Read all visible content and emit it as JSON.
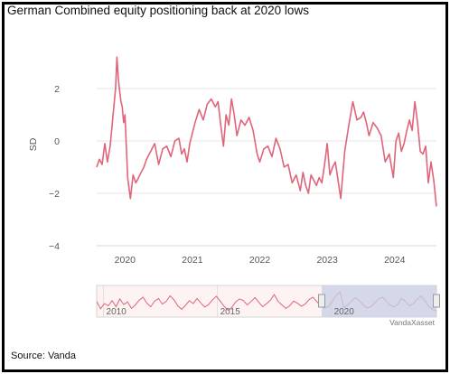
{
  "title": "German Combined equity positioning back at 2020 lows",
  "source": "Source: Vanda",
  "credit": "VandaXasset",
  "colors": {
    "line": "#e0647a",
    "grid": "#e6e6e6",
    "nav_fill": "#c7cfe6",
    "nav_handle": "#eeeeee"
  },
  "chart_data": {
    "type": "line",
    "title": "German Combined equity positioning back at 2020 lows",
    "xlabel": "",
    "ylabel": "SD",
    "ylim": [
      -4,
      4
    ],
    "yticks": [
      "2",
      "0",
      "−2",
      "−4"
    ],
    "ytick_values": [
      2,
      0,
      -2,
      -4
    ],
    "xticks": [
      "2020",
      "2021",
      "2022",
      "2023",
      "2024"
    ],
    "xtick_values": [
      2020,
      2021,
      2022,
      2023,
      2024
    ],
    "xlim": [
      2019.58,
      2024.62
    ],
    "grid": true,
    "series": [
      {
        "x": [
          2019.58,
          2019.62,
          2019.66,
          2019.7,
          2019.74,
          2019.78,
          2019.82,
          2019.86,
          2019.88,
          2019.9,
          2019.92,
          2019.94,
          2019.96,
          2019.98,
          2020.0,
          2020.04,
          2020.08,
          2020.12,
          2020.16,
          2020.2,
          2020.24,
          2020.28,
          2020.32,
          2020.38,
          2020.44,
          2020.5,
          2020.56,
          2020.62,
          2020.68,
          2020.74,
          2020.8,
          2020.84,
          2020.88,
          2020.92,
          2020.96,
          2021.0,
          2021.04,
          2021.1,
          2021.16,
          2021.22,
          2021.28,
          2021.34,
          2021.38,
          2021.42,
          2021.46,
          2021.5,
          2021.54,
          2021.58,
          2021.62,
          2021.66,
          2021.72,
          2021.78,
          2021.84,
          2021.9,
          2021.96,
          2022.0,
          2022.06,
          2022.12,
          2022.18,
          2022.24,
          2022.3,
          2022.36,
          2022.42,
          2022.48,
          2022.54,
          2022.6,
          2022.64,
          2022.68,
          2022.72,
          2022.76,
          2022.8,
          2022.84,
          2022.88,
          2022.92,
          2022.96,
          2023.0,
          2023.04,
          2023.08,
          2023.12,
          2023.16,
          2023.2,
          2023.26,
          2023.32,
          2023.38,
          2023.44,
          2023.5,
          2023.54,
          2023.58,
          2023.62,
          2023.68,
          2023.74,
          2023.8,
          2023.86,
          2023.92,
          2023.98,
          2024.02,
          2024.06,
          2024.1,
          2024.14,
          2024.18,
          2024.22,
          2024.26,
          2024.3,
          2024.34,
          2024.38,
          2024.42,
          2024.46,
          2024.5,
          2024.54,
          2024.58,
          2024.62
        ],
        "values": [
          -1.0,
          -0.7,
          -0.9,
          -0.1,
          -0.8,
          -0.2,
          0.9,
          2.0,
          3.2,
          2.4,
          1.9,
          1.5,
          1.3,
          0.7,
          1.0,
          -1.4,
          -2.2,
          -1.3,
          -1.6,
          -1.4,
          -1.2,
          -1.0,
          -0.7,
          -0.4,
          -0.1,
          -0.9,
          -0.3,
          -0.2,
          -0.6,
          0.0,
          0.1,
          -0.5,
          -0.3,
          -0.8,
          -0.1,
          0.3,
          0.7,
          1.2,
          0.8,
          1.4,
          1.6,
          1.3,
          1.5,
          0.6,
          -0.2,
          1.0,
          0.6,
          1.6,
          1.0,
          0.2,
          0.8,
          0.6,
          0.9,
          0.4,
          -0.5,
          -0.8,
          -0.3,
          -0.2,
          -0.6,
          0.1,
          -0.3,
          -1.0,
          -0.9,
          -1.6,
          -1.3,
          -1.9,
          -1.2,
          -1.7,
          -2.0,
          -1.3,
          -1.5,
          -1.7,
          -1.4,
          -1.6,
          -0.9,
          -0.1,
          -1.3,
          -1.0,
          -0.8,
          -1.5,
          -2.2,
          -0.4,
          0.6,
          1.5,
          0.8,
          0.9,
          1.1,
          0.7,
          0.2,
          0.7,
          0.5,
          0.2,
          -0.8,
          -0.5,
          -1.4,
          0.0,
          0.3,
          -0.4,
          -0.1,
          0.4,
          0.8,
          0.4,
          1.5,
          0.7,
          -0.4,
          -0.5,
          -0.2,
          -1.6,
          -0.8,
          -1.5,
          -2.5
        ]
      }
    ],
    "navigator": {
      "xticks": [
        "2010",
        "2015",
        "2020"
      ],
      "xtick_values": [
        2010,
        2015,
        2020
      ],
      "xlim": [
        2009.7,
        2024.62
      ],
      "selected_range": [
        2019.58,
        2024.62
      ],
      "values": [
        0.2,
        -1.5,
        -0.3,
        -0.8,
        0.4,
        -1.0,
        0.8,
        -0.5,
        0.1,
        -1.4,
        -0.6,
        0.5,
        1.2,
        -0.2,
        -1.0,
        0.3,
        0.9,
        -0.4,
        0.2,
        1.5,
        0.6,
        -0.8,
        -1.6,
        -0.7,
        0.4,
        -0.3,
        0.9,
        -0.2,
        -1.1,
        -0.5,
        0.6,
        1.4,
        0.3,
        -0.9,
        -1.8,
        -1.2,
        0.1,
        0.8,
        0.4,
        -0.6,
        0.2,
        1.1,
        0.0,
        -1.0,
        -0.3,
        0.5,
        1.8,
        0.2,
        -0.6,
        -1.4,
        -0.8,
        0.3,
        -0.2,
        -0.9,
        -0.4,
        0.6,
        1.2,
        0.2,
        -0.8,
        -1.3,
        -1.0,
        0.2,
        1.6,
        2.4,
        -1.2,
        -0.6,
        0.3,
        1.1,
        0.4,
        -0.5,
        -1.3,
        -1.0,
        -0.2,
        0.8,
        1.2,
        0.3,
        -0.6,
        -1.1,
        -0.4,
        0.9,
        0.2,
        -0.8,
        -0.3,
        0.7,
        1.5,
        0.4,
        -0.9,
        -1.6,
        -2.0
      ]
    }
  }
}
